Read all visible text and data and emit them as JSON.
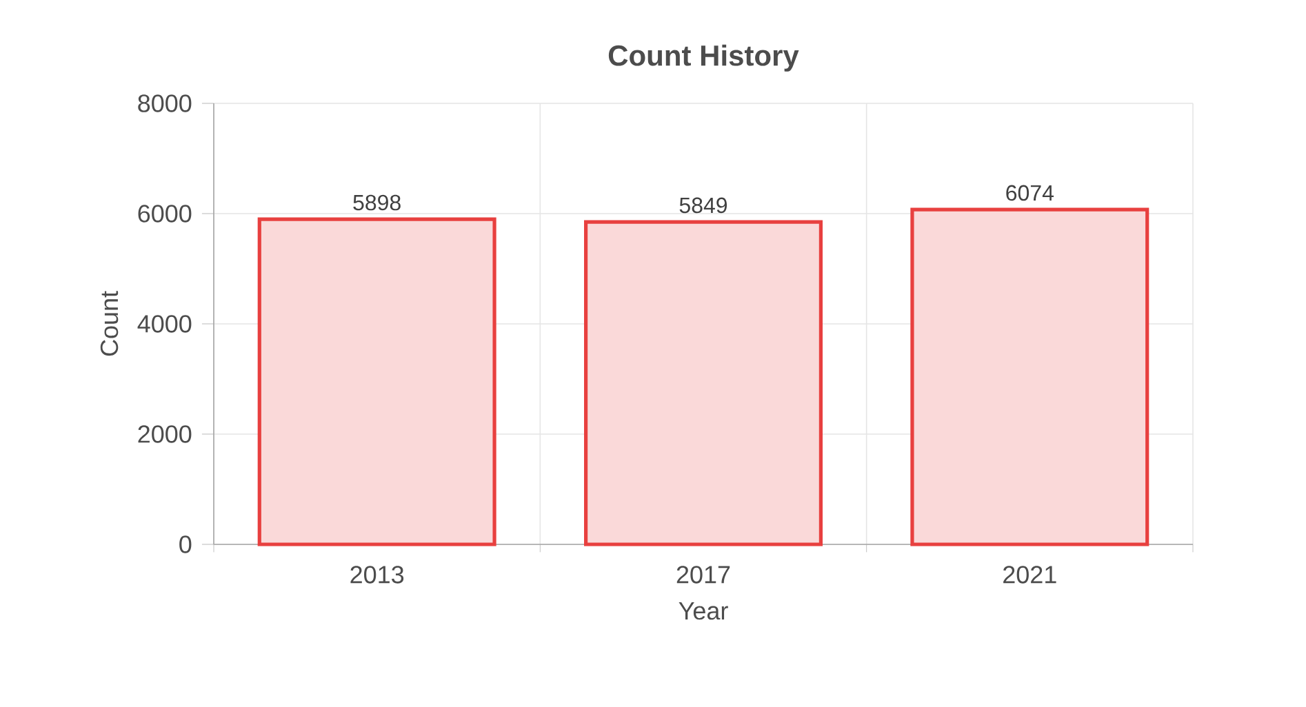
{
  "chart_data": {
    "type": "bar",
    "title": "Count History",
    "xlabel": "Year",
    "ylabel": "Count",
    "categories": [
      "2013",
      "2017",
      "2021"
    ],
    "series": [
      {
        "color": "#e8403f",
        "values": [
          5898,
          5849,
          6074
        ]
      }
    ],
    "ylim": [
      0,
      8000
    ],
    "yticks": [
      0,
      2000,
      4000,
      6000,
      8000
    ],
    "grid": true,
    "data_labels": true
  }
}
